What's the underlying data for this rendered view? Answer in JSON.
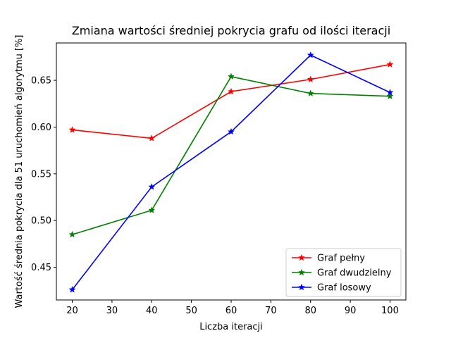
{
  "chart_data": {
    "type": "line",
    "title": "Zmiana wartości średniej pokrycia grafu od ilości iteracji",
    "xlabel": "Liczba iteracji",
    "ylabel": "Wartość średnia pokrycia dla 51 uruchomień algorytmu [%]",
    "x": [
      20,
      40,
      60,
      80,
      100
    ],
    "xlim": [
      16,
      104
    ],
    "ylim": [
      0.415,
      0.69
    ],
    "xticks": [
      "20",
      "30",
      "40",
      "50",
      "60",
      "70",
      "80",
      "90",
      "100"
    ],
    "yticks": [
      "0.45",
      "0.50",
      "0.55",
      "0.60",
      "0.65"
    ],
    "grid": false,
    "legend_position": "lower-right",
    "marker": "star",
    "series": [
      {
        "name": "Graf pełny",
        "color": "#ff0000",
        "values": [
          0.597,
          0.588,
          0.638,
          0.651,
          0.667
        ]
      },
      {
        "name": "Graf dwudzielny",
        "color": "#008000",
        "values": [
          0.485,
          0.511,
          0.654,
          0.636,
          0.633
        ]
      },
      {
        "name": "Graf losowy",
        "color": "#0000ff",
        "values": [
          0.426,
          0.536,
          0.595,
          0.677,
          0.637
        ]
      }
    ]
  }
}
